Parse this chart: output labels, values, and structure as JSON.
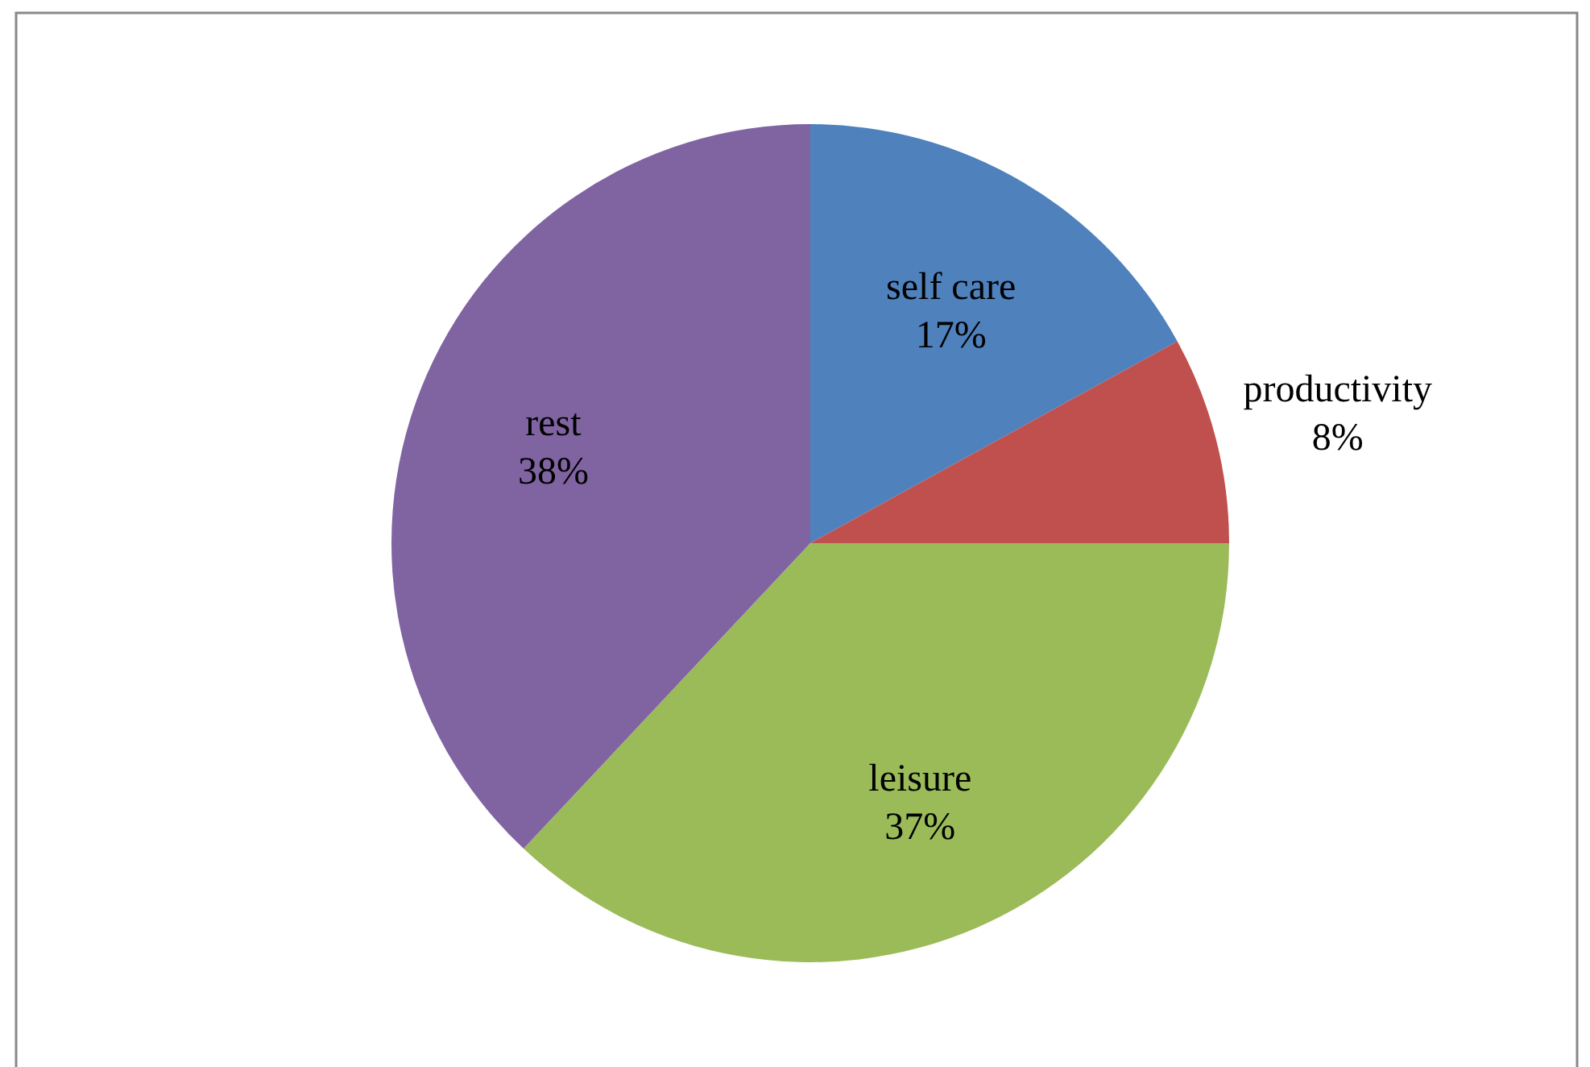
{
  "chart_data": {
    "type": "pie",
    "categories": [
      "self care",
      "productivity",
      "leisure",
      "rest"
    ],
    "values": [
      17,
      8,
      37,
      38
    ],
    "colors": [
      "#4f81bd",
      "#c0504d",
      "#9bbb59",
      "#8064a2"
    ],
    "value_labels": [
      "17%",
      "8%",
      "37%",
      "38%"
    ],
    "legend": false
  }
}
